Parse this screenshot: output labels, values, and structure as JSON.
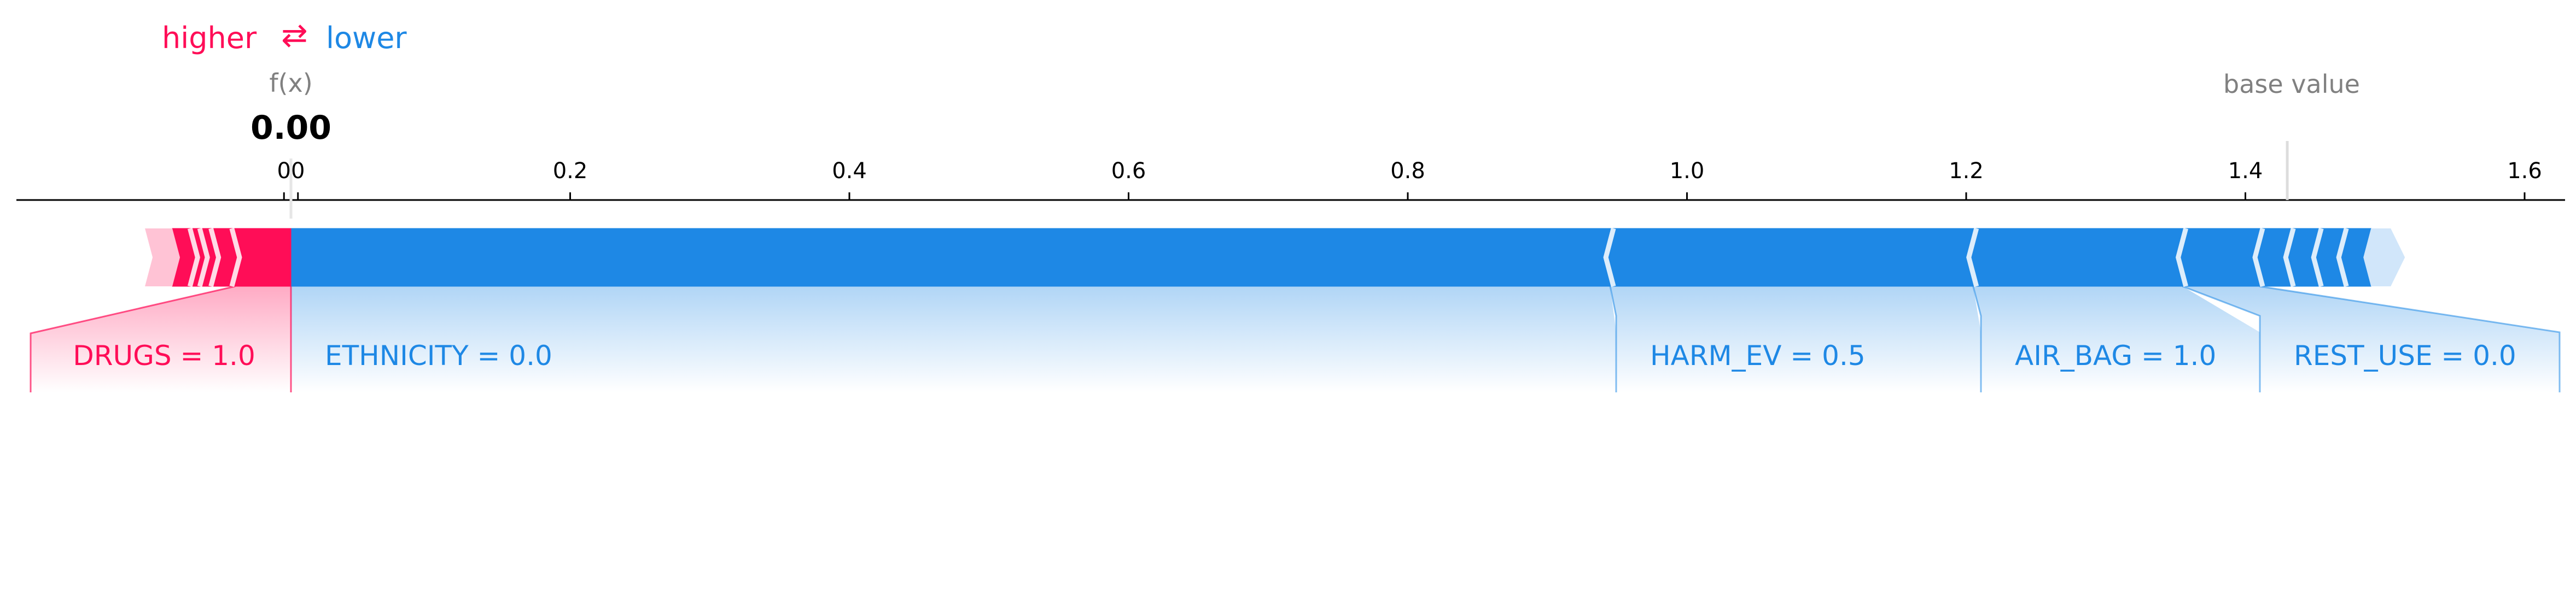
{
  "legend": {
    "higher": "higher",
    "arrow": "⇄",
    "lower": "lower"
  },
  "fx_label": "f(x)",
  "fx_value": "0.00",
  "base_value_label": "base value",
  "colors": {
    "higher": "#ff0d57",
    "lower": "#1e88e5",
    "higher_light": "#ffc3d5",
    "lower_light": "#d1e6fa",
    "axis": "#000000",
    "muted": "#808080"
  },
  "chart_data": {
    "type": "force",
    "fx": 0.0,
    "base_value": 1.43,
    "xlim": [
      -0.1,
      1.62
    ],
    "ticks": [
      {
        "value": -0.005,
        "label": "0"
      },
      {
        "value": 0.005,
        "label": "0"
      },
      {
        "value": 0.2,
        "label": "0.2"
      },
      {
        "value": 0.4,
        "label": "0.4"
      },
      {
        "value": 0.6,
        "label": "0.6"
      },
      {
        "value": 0.8,
        "label": "0.8"
      },
      {
        "value": 1.0,
        "label": "1.0"
      },
      {
        "value": 1.2,
        "label": "1.2"
      },
      {
        "value": 1.4,
        "label": "1.4"
      },
      {
        "value": 1.6,
        "label": "1.6"
      }
    ],
    "higher_features": [
      {
        "label": "DRUGS = 1.0",
        "start": -0.04,
        "end": 0.0
      },
      {
        "label": "",
        "start": -0.055,
        "end": -0.04
      },
      {
        "label": "",
        "start": -0.063,
        "end": -0.055
      },
      {
        "label": "",
        "start": -0.07,
        "end": -0.063
      },
      {
        "label": "",
        "start": -0.085,
        "end": -0.07
      }
    ],
    "lower_features": [
      {
        "label": "ETHNICITY  = 0.0",
        "start": 0.0,
        "end": 0.945
      },
      {
        "label": "HARM_EV = 0.5",
        "start": 0.945,
        "end": 1.205
      },
      {
        "label": "AIR_BAG = 1.0",
        "start": 1.205,
        "end": 1.355
      },
      {
        "label": "REST_USE = 0.0",
        "start": 1.355,
        "end": 1.41
      },
      {
        "label": "",
        "start": 1.41,
        "end": 1.432
      },
      {
        "label": "",
        "start": 1.432,
        "end": 1.452
      },
      {
        "label": "",
        "start": 1.452,
        "end": 1.47
      },
      {
        "label": "",
        "start": 1.47,
        "end": 1.49
      }
    ]
  }
}
